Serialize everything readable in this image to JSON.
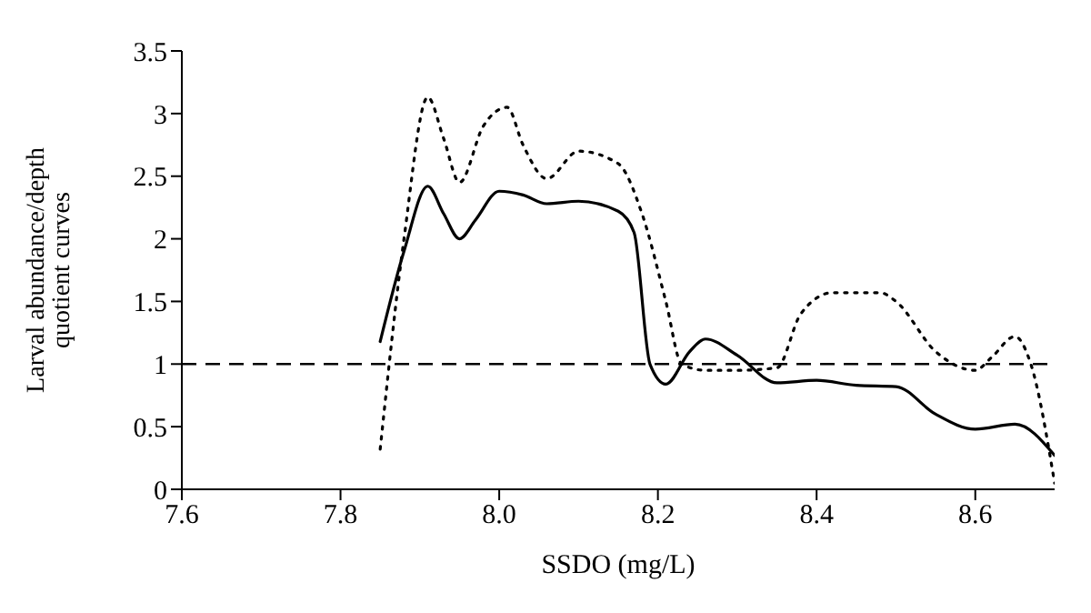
{
  "chart_data": {
    "type": "line",
    "xlabel": "SSDO (mg/L)",
    "ylabel": "Larval abundance/depth quotient curves",
    "xlim": [
      7.6,
      8.7
    ],
    "xticks": [
      7.6,
      7.8,
      {
        "value": 8.0,
        "label": "8.0"
      },
      8.2,
      8.4,
      8.6
    ],
    "ylim": [
      0,
      3.5
    ],
    "yticks": [
      0,
      0.5,
      1,
      1.5,
      2,
      2.5,
      3,
      3.5
    ],
    "marker": "none",
    "series": [
      {
        "color": "#000000",
        "line_style": "solid",
        "x": [
          7.85,
          7.88,
          7.91,
          7.93,
          7.95,
          7.97,
          8.0,
          8.03,
          8.06,
          8.1,
          8.15,
          8.17,
          8.19,
          8.21,
          8.24,
          8.26,
          8.3,
          8.35,
          8.4,
          8.45,
          8.5,
          8.55,
          8.6,
          8.65,
          8.7
        ],
        "values": [
          1.18,
          1.9,
          2.42,
          2.2,
          2.0,
          2.15,
          2.38,
          2.35,
          2.28,
          2.3,
          2.22,
          2.05,
          1.0,
          0.84,
          1.1,
          1.2,
          1.07,
          0.85,
          0.87,
          0.83,
          0.82,
          0.6,
          0.48,
          0.52,
          0.27
        ]
      },
      {
        "color": "#000000",
        "line_style": "dotted",
        "x": [
          7.85,
          7.88,
          7.91,
          7.93,
          7.95,
          7.98,
          8.01,
          8.03,
          8.06,
          8.1,
          8.15,
          8.18,
          8.21,
          8.23,
          8.26,
          8.3,
          8.35,
          8.38,
          8.42,
          8.48,
          8.5,
          8.55,
          8.6,
          8.62,
          8.65,
          8.67,
          8.7
        ],
        "values": [
          0.32,
          2.0,
          3.13,
          2.8,
          2.45,
          2.9,
          3.05,
          2.75,
          2.48,
          2.7,
          2.6,
          2.2,
          1.5,
          1.0,
          0.95,
          0.95,
          0.97,
          1.4,
          1.57,
          1.57,
          1.5,
          1.1,
          0.95,
          1.05,
          1.22,
          1.0,
          0.05
        ]
      }
    ],
    "ref_lines": [
      {
        "axis": "y",
        "value": 1,
        "line_style": "dashed",
        "color": "#000000"
      }
    ]
  }
}
